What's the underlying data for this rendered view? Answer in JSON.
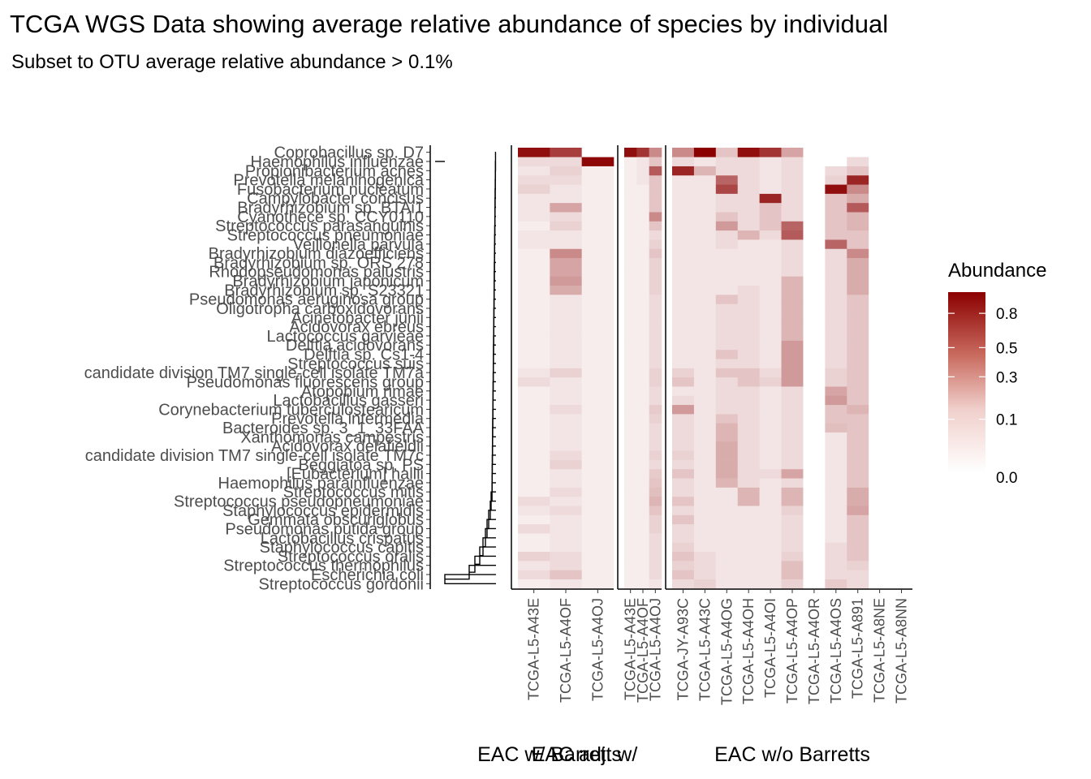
{
  "chart_data": {
    "type": "heatmap",
    "title": "TCGA WGS Data showing average relative abundance of species by individual",
    "subtitle": "Subset to OTU average relative abundance > 0.1%",
    "legend": {
      "title": "Abundance",
      "position": "right",
      "ticks": [
        "0.8",
        "0.5",
        "0.3",
        "0.1",
        "0.0"
      ],
      "tick_values": [
        0.8,
        0.5,
        0.3,
        0.1,
        0.0
      ],
      "low_color": "#ffffff",
      "high_color": "#8b0000"
    },
    "species": [
      "Streptococcus gordonii",
      "Escherichia coli",
      "Streptococcus thermophilus",
      "Streptococcus oralis",
      "Staphylococcus capitis",
      "Lactobacillus crispatus",
      "Pseudomonas putida group",
      "Gemmata obscuriglobus",
      "Staphylococcus epidermidis",
      "Streptococcus pseudopneumoniae",
      "Streptococcus mitis",
      "Haemophilus parainfluenzae",
      "[Eubacterium] hallii",
      "Beggiatoa sp. PS",
      "candidate division TM7 single-cell isolate TM7c",
      "Acidovorax delafieldii",
      "Xanthomonas campestris",
      "Bacteroides sp. 3_1_33FAA",
      "Prevotella intermedia",
      "Corynebacterium tuberculostearicum",
      "Lactobacillus gasseri",
      "Atopobium rimae",
      "Pseudomonas fluorescens group",
      "candidate division TM7 single-cell isolate TM7a",
      "Streptococcus suis",
      "Delftia sp. Cs1-4",
      "Delftia acidovorans",
      "Lactococcus garvieae",
      "Acidovorax ebreus",
      "Acinetobacter junii",
      "Oligotropha carboxidovorans",
      "Pseudomonas aeruginosa group",
      "Bradyrhizobium sp. S23321",
      "Bradyrhizobium japonicum",
      "Rhodopseudomonas palustris",
      "Bradyrhizobium sp. ORS 278",
      "Bradyrhizobium diazoefficiens",
      "Veillonella parvula",
      "Streptococcus pneumoniae",
      "Streptococcus parasanguinis",
      "Cyanothece sp. CCY0110",
      "Bradyrhizobium sp. BTAi1",
      "Campylobacter concisus",
      "Fusobacterium nucleatum",
      "Prevotella melaninogenica",
      "Propionibacterium acnes",
      "Haemophilus influenzae",
      "Coprobacillus sp. D7"
    ],
    "panels": [
      {
        "name": "EAC w/ Barretts",
        "samples": [
          "TCGA-L5-A43E",
          "TCGA-L5-A4OF",
          "TCGA-L5-A4OJ"
        ],
        "values": [
          [
            0.005,
            0.02,
            0.01,
            0.03,
            0.005,
            0.005,
            0.02,
            0.005,
            0.01,
            0.02,
            0.005,
            0.005,
            0.005,
            0.005,
            0.005,
            0.005,
            0.005,
            0.005,
            0.005,
            0.005,
            0.005,
            0.005,
            0.02,
            0.01,
            0.005,
            0.005,
            0.005,
            0.005,
            0.005,
            0.005,
            0.005,
            0.005,
            0.005,
            0.005,
            0.005,
            0.005,
            0.005,
            0.01,
            0.01,
            0.005,
            0.01,
            0.01,
            0.01,
            0.03,
            0.02,
            0.01,
            0.02,
            0.85
          ],
          [
            0.01,
            0.05,
            0.02,
            0.02,
            0.01,
            0.01,
            0.01,
            0.01,
            0.02,
            0.01,
            0.02,
            0.01,
            0.01,
            0.03,
            0.02,
            0.01,
            0.01,
            0.01,
            0.01,
            0.02,
            0.01,
            0.01,
            0.01,
            0.03,
            0.01,
            0.01,
            0.01,
            0.01,
            0.01,
            0.01,
            0.01,
            0.01,
            0.1,
            0.15,
            0.12,
            0.12,
            0.2,
            0.01,
            0.01,
            0.03,
            0.02,
            0.12,
            0.01,
            0.01,
            0.02,
            0.03,
            0.02,
            0.55
          ],
          [
            0.005,
            0.005,
            0.005,
            0.005,
            0.005,
            0.005,
            0.005,
            0.005,
            0.005,
            0.005,
            0.005,
            0.005,
            0.005,
            0.005,
            0.005,
            0.005,
            0.005,
            0.005,
            0.005,
            0.005,
            0.005,
            0.005,
            0.005,
            0.005,
            0.005,
            0.005,
            0.005,
            0.005,
            0.005,
            0.005,
            0.005,
            0.005,
            0.005,
            0.005,
            0.005,
            0.005,
            0.005,
            0.005,
            0.005,
            0.005,
            0.005,
            0.005,
            0.005,
            0.005,
            0.005,
            0.005,
            0.9,
            0.0
          ]
        ]
      },
      {
        "name": "EAC adj. w/",
        "samples": [
          "TCGA-L5-A43E",
          "TCGA-L5-A4OF",
          "TCGA-L5-A4OJ"
        ],
        "values": [
          [
            0.005,
            0.005,
            0.005,
            0.005,
            0.005,
            0.005,
            0.005,
            0.005,
            0.005,
            0.005,
            0.005,
            0.005,
            0.005,
            0.005,
            0.005,
            0.005,
            0.005,
            0.005,
            0.005,
            0.005,
            0.005,
            0.005,
            0.005,
            0.005,
            0.005,
            0.005,
            0.005,
            0.005,
            0.005,
            0.005,
            0.005,
            0.005,
            0.005,
            0.005,
            0.005,
            0.005,
            0.005,
            0.005,
            0.005,
            0.005,
            0.005,
            0.005,
            0.005,
            0.005,
            0.005,
            0.005,
            0.005,
            0.85
          ],
          [
            0.005,
            0.005,
            0.005,
            0.005,
            0.005,
            0.005,
            0.005,
            0.005,
            0.005,
            0.005,
            0.005,
            0.005,
            0.005,
            0.005,
            0.005,
            0.005,
            0.005,
            0.005,
            0.005,
            0.005,
            0.005,
            0.005,
            0.005,
            0.005,
            0.005,
            0.005,
            0.005,
            0.005,
            0.005,
            0.005,
            0.005,
            0.005,
            0.005,
            0.005,
            0.005,
            0.005,
            0.005,
            0.005,
            0.005,
            0.005,
            0.005,
            0.005,
            0.005,
            0.005,
            0.01,
            0.01,
            0.01,
            0.6
          ],
          [
            0.01,
            0.02,
            0.02,
            0.02,
            0.02,
            0.02,
            0.03,
            0.03,
            0.05,
            0.08,
            0.06,
            0.05,
            0.04,
            0.02,
            0.03,
            0.02,
            0.02,
            0.02,
            0.03,
            0.04,
            0.02,
            0.02,
            0.03,
            0.03,
            0.02,
            0.02,
            0.02,
            0.02,
            0.02,
            0.02,
            0.02,
            0.02,
            0.03,
            0.03,
            0.03,
            0.03,
            0.05,
            0.03,
            0.02,
            0.05,
            0.2,
            0.05,
            0.05,
            0.05,
            0.05,
            0.4,
            0.05,
            0.2
          ]
        ]
      },
      {
        "name": "EAC w/o Barretts",
        "samples": [
          "TCGA-JY-A93C",
          "TCGA-L5-A43C",
          "TCGA-L5-A4OG",
          "TCGA-L5-A4OH",
          "TCGA-L5-A4OI",
          "TCGA-L5-A4OP",
          "TCGA-L5-A4OR",
          "TCGA-L5-A4OS",
          "TCGA-L5-A891",
          "TCGA-L5-A8NE",
          "TCGA-L5-A8NN"
        ],
        "values": [
          [
            0.02,
            0.05,
            0.03,
            0.05,
            0.03,
            0.02,
            0.02,
            0.05,
            0.02,
            0.05,
            0.02,
            0.02,
            0.05,
            0.02,
            0.03,
            0.02,
            0.02,
            0.02,
            0.02,
            0.15,
            0.02,
            0.01,
            0.05,
            0.03,
            0.01,
            0.01,
            0.01,
            0.01,
            0.01,
            0.01,
            0.01,
            0.01,
            0.01,
            0.01,
            0.01,
            0.01,
            0.01,
            0.01,
            0.01,
            0.01,
            0.01,
            0.01,
            0.01,
            0.01,
            0.01,
            0.7,
            0.02,
            0.2
          ],
          [
            0.03,
            0.02,
            0.02,
            0.02,
            0.01,
            0.01,
            0.01,
            0.01,
            0.01,
            0.01,
            0.01,
            0.01,
            0.01,
            0.01,
            0.01,
            0.01,
            0.01,
            0.01,
            0.01,
            0.01,
            0.01,
            0.01,
            0.01,
            0.01,
            0.01,
            0.01,
            0.01,
            0.01,
            0.01,
            0.01,
            0.01,
            0.01,
            0.01,
            0.01,
            0.01,
            0.01,
            0.01,
            0.01,
            0.01,
            0.01,
            0.01,
            0.01,
            0.01,
            0.01,
            0.01,
            0.08,
            0.01,
            0.95
          ],
          [
            0.01,
            0.01,
            0.01,
            0.01,
            0.01,
            0.01,
            0.01,
            0.01,
            0.01,
            0.01,
            0.01,
            0.08,
            0.1,
            0.1,
            0.1,
            0.1,
            0.08,
            0.08,
            0.05,
            0.02,
            0.02,
            0.02,
            0.02,
            0.05,
            0.02,
            0.05,
            0.02,
            0.02,
            0.02,
            0.02,
            0.02,
            0.05,
            0.01,
            0.01,
            0.01,
            0.01,
            0.01,
            0.02,
            0.02,
            0.15,
            0.05,
            0.02,
            0.02,
            0.5,
            0.35,
            0.02,
            0.02,
            0.05
          ],
          [
            0.01,
            0.01,
            0.01,
            0.01,
            0.01,
            0.01,
            0.01,
            0.01,
            0.01,
            0.08,
            0.08,
            0.02,
            0.02,
            0.02,
            0.02,
            0.02,
            0.02,
            0.02,
            0.02,
            0.02,
            0.02,
            0.02,
            0.05,
            0.05,
            0.02,
            0.02,
            0.02,
            0.02,
            0.02,
            0.02,
            0.02,
            0.02,
            0.02,
            0.01,
            0.01,
            0.01,
            0.01,
            0.01,
            0.08,
            0.02,
            0.02,
            0.02,
            0.02,
            0.02,
            0.02,
            0.02,
            0.02,
            0.85
          ],
          [
            0.01,
            0.01,
            0.01,
            0.01,
            0.01,
            0.01,
            0.01,
            0.01,
            0.01,
            0.01,
            0.01,
            0.01,
            0.02,
            0.01,
            0.01,
            0.01,
            0.01,
            0.01,
            0.01,
            0.01,
            0.01,
            0.01,
            0.03,
            0.02,
            0.01,
            0.01,
            0.01,
            0.01,
            0.01,
            0.01,
            0.01,
            0.01,
            0.01,
            0.01,
            0.01,
            0.01,
            0.01,
            0.01,
            0.02,
            0.05,
            0.05,
            0.05,
            0.7,
            0.01,
            0.01,
            0.01,
            0.01,
            0.6
          ],
          [
            0.03,
            0.06,
            0.06,
            0.03,
            0.02,
            0.02,
            0.02,
            0.02,
            0.03,
            0.08,
            0.08,
            0.02,
            0.12,
            0.02,
            0.02,
            0.02,
            0.02,
            0.02,
            0.02,
            0.02,
            0.02,
            0.02,
            0.15,
            0.15,
            0.15,
            0.15,
            0.15,
            0.08,
            0.08,
            0.08,
            0.08,
            0.08,
            0.08,
            0.08,
            0.02,
            0.02,
            0.02,
            0.02,
            0.4,
            0.35,
            0.02,
            0.02,
            0.02,
            0.02,
            0.02,
            0.02,
            0.02,
            0.12
          ],
          [
            0.0,
            0.0,
            0.0,
            0.0,
            0.0,
            0.0,
            0.0,
            0.0,
            0.0,
            0.0,
            0.0,
            0.0,
            0.0,
            0.0,
            0.0,
            0.0,
            0.0,
            0.0,
            0.0,
            0.0,
            0.0,
            0.0,
            0.0,
            0.0,
            0.0,
            0.0,
            0.0,
            0.0,
            0.0,
            0.0,
            0.0,
            0.0,
            0.0,
            0.0,
            0.0,
            0.0,
            0.0,
            0.0,
            0.0,
            0.0,
            0.0,
            0.0,
            0.0,
            0.0,
            0.0,
            0.0,
            0.0,
            0.0
          ],
          [
            0.04,
            0.02,
            0.02,
            0.02,
            0.02,
            0.01,
            0.01,
            0.01,
            0.01,
            0.01,
            0.01,
            0.01,
            0.01,
            0.01,
            0.01,
            0.01,
            0.01,
            0.06,
            0.05,
            0.05,
            0.15,
            0.12,
            0.03,
            0.03,
            0.02,
            0.02,
            0.02,
            0.02,
            0.02,
            0.02,
            0.02,
            0.02,
            0.02,
            0.02,
            0.02,
            0.02,
            0.02,
            0.35,
            0.05,
            0.05,
            0.05,
            0.05,
            0.05,
            0.85,
            0.03,
            0.02,
            0.0,
            0.0
          ],
          [
            0.02,
            0.02,
            0.03,
            0.05,
            0.05,
            0.05,
            0.05,
            0.05,
            0.12,
            0.1,
            0.1,
            0.05,
            0.05,
            0.05,
            0.05,
            0.05,
            0.05,
            0.05,
            0.05,
            0.08,
            0.05,
            0.05,
            0.05,
            0.05,
            0.05,
            0.05,
            0.05,
            0.05,
            0.05,
            0.05,
            0.05,
            0.05,
            0.1,
            0.1,
            0.1,
            0.1,
            0.2,
            0.05,
            0.05,
            0.08,
            0.08,
            0.4,
            0.1,
            0.2,
            0.7,
            0.05,
            0.02,
            0.0
          ],
          [
            0.0,
            0.0,
            0.0,
            0.0,
            0.0,
            0.0,
            0.0,
            0.0,
            0.0,
            0.0,
            0.0,
            0.0,
            0.0,
            0.0,
            0.0,
            0.0,
            0.0,
            0.0,
            0.0,
            0.0,
            0.0,
            0.0,
            0.0,
            0.0,
            0.0,
            0.0,
            0.0,
            0.0,
            0.0,
            0.0,
            0.0,
            0.0,
            0.0,
            0.0,
            0.0,
            0.0,
            0.0,
            0.0,
            0.0,
            0.0,
            0.0,
            0.0,
            0.0,
            0.0,
            0.0,
            0.0,
            0.0,
            0.0
          ],
          [
            0.0,
            0.0,
            0.0,
            0.0,
            0.0,
            0.0,
            0.0,
            0.0,
            0.0,
            0.0,
            0.0,
            0.0,
            0.0,
            0.0,
            0.0,
            0.0,
            0.0,
            0.0,
            0.0,
            0.0,
            0.0,
            0.0,
            0.0,
            0.0,
            0.0,
            0.0,
            0.0,
            0.0,
            0.0,
            0.0,
            0.0,
            0.0,
            0.0,
            0.0,
            0.0,
            0.0,
            0.0,
            0.0,
            0.0,
            0.0,
            0.0,
            0.0,
            0.0,
            0.0,
            0.0,
            0.0,
            0.0,
            0.0
          ]
        ]
      }
    ]
  }
}
